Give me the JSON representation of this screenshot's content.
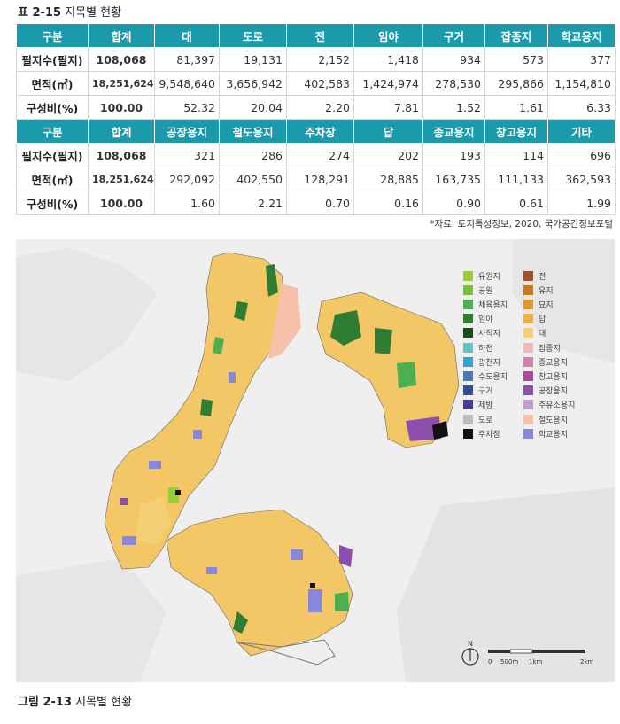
{
  "table_caption": {
    "label": "표 2-15",
    "title": "지목별 현황"
  },
  "table1": {
    "headers": [
      "구분",
      "합계",
      "대",
      "도로",
      "전",
      "임야",
      "구거",
      "잡종지",
      "학교용지"
    ],
    "rows": [
      [
        "필지수(필지)",
        "108,068",
        "81,397",
        "19,131",
        "2,152",
        "1,418",
        "934",
        "573",
        "377"
      ],
      [
        "면적(㎡)",
        "18,251,624",
        "9,548,640",
        "3,656,942",
        "402,583",
        "1,424,974",
        "278,530",
        "295,866",
        "1,154,810"
      ],
      [
        "구성비(%)",
        "100.00",
        "52.32",
        "20.04",
        "2.20",
        "7.81",
        "1.52",
        "1.61",
        "6.33"
      ]
    ]
  },
  "table2": {
    "headers": [
      "구분",
      "합계",
      "공장용지",
      "철도용지",
      "주차장",
      "답",
      "종교용지",
      "창고용지",
      "기타"
    ],
    "rows": [
      [
        "필지수(필지)",
        "108,068",
        "321",
        "286",
        "274",
        "202",
        "193",
        "114",
        "696"
      ],
      [
        "면적(㎡)",
        "18,251,624",
        "292,092",
        "402,550",
        "128,291",
        "28,885",
        "163,735",
        "111,133",
        "362,593"
      ],
      [
        "구성비(%)",
        "100.00",
        "1.60",
        "2.21",
        "0.70",
        "0.16",
        "0.90",
        "0.61",
        "1.99"
      ]
    ]
  },
  "source": "*자료: 토지특성정보, 2020, 국가공간정보포털",
  "legend": [
    {
      "label": "유원지",
      "color": "#9acd32"
    },
    {
      "label": "공원",
      "color": "#7cbf3a"
    },
    {
      "label": "체육용지",
      "color": "#4caf50"
    },
    {
      "label": "임야",
      "color": "#2e7d32"
    },
    {
      "label": "사적지",
      "color": "#1b4d1b"
    },
    {
      "label": "하천",
      "color": "#5bc8c8"
    },
    {
      "label": "광천지",
      "color": "#29a9d9"
    },
    {
      "label": "수도용지",
      "color": "#3f7fbf"
    },
    {
      "label": "구거",
      "color": "#2f4f9f"
    },
    {
      "label": "제방",
      "color": "#4b3a9a"
    },
    {
      "label": "도로",
      "color": "#bdbdbd"
    },
    {
      "label": "주차장",
      "color": "#111111"
    },
    {
      "label": "전",
      "color": "#a0522d"
    },
    {
      "label": "유지",
      "color": "#c8791e"
    },
    {
      "label": "묘지",
      "color": "#e09a2a"
    },
    {
      "label": "답",
      "color": "#f0b040"
    },
    {
      "label": "대",
      "color": "#f5cf74"
    },
    {
      "label": "잡종지",
      "color": "#f4b8b8"
    },
    {
      "label": "종교용지",
      "color": "#d77fb0"
    },
    {
      "label": "창고용지",
      "color": "#b0479e"
    },
    {
      "label": "공장용지",
      "color": "#8c4fae"
    },
    {
      "label": "주유소용지",
      "color": "#c39bd3"
    },
    {
      "label": "철도용지",
      "color": "#f6c1a8"
    },
    {
      "label": "학교용지",
      "color": "#8a86d8"
    }
  ],
  "scale": {
    "labels": [
      "0",
      "500m",
      "1km",
      "2km"
    ]
  },
  "north_label": "N",
  "figure_caption": {
    "label": "그림 2-13",
    "title": "지목별 현황"
  }
}
